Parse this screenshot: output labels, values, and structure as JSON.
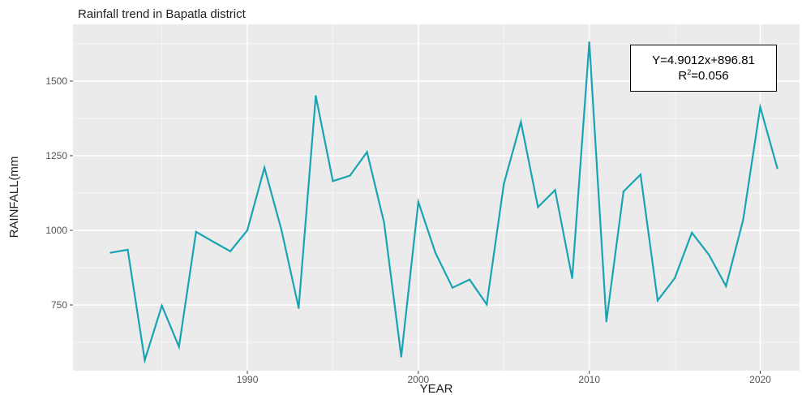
{
  "chart_data": {
    "type": "line",
    "title": "Rainfall trend in Bapatla district",
    "xlabel": "YEAR",
    "ylabel": "RAINFALL(mm",
    "xlim": [
      1979.8,
      2022.3
    ],
    "ylim": [
      530,
      1690
    ],
    "x_ticks": [
      1990,
      2000,
      2010,
      2020
    ],
    "y_ticks": [
      750,
      1000,
      1250,
      1500
    ],
    "grid": true,
    "legend": "none",
    "line_color": "#1aa3b3",
    "panel_color": "#ebebeb",
    "series": [
      {
        "x": [
          1982,
          1983,
          1984,
          1985,
          1986,
          1987,
          1988,
          1989,
          1990,
          1991,
          1992,
          1993,
          1994,
          1995,
          1996,
          1997,
          1998,
          1999,
          2000,
          2001,
          2002,
          2003,
          2004,
          2005,
          2006,
          2007,
          2008,
          2009,
          2010,
          2011,
          2012,
          2013,
          2014,
          2015,
          2016,
          2017,
          2018,
          2019,
          2020,
          2021
        ],
        "values": [
          925,
          935,
          565,
          748,
          610,
          995,
          962,
          930,
          1000,
          1210,
          1000,
          740,
          1450,
          1165,
          1183,
          1262,
          1025,
          577,
          1095,
          925,
          808,
          835,
          752,
          1155,
          1363,
          1078,
          1135,
          840,
          1630,
          695,
          1130,
          1187,
          765,
          840,
          992,
          918,
          813,
          1035,
          1413,
          1208
        ]
      }
    ],
    "annotation": {
      "equation": "Y=4.9012x+896.81",
      "r2_prefix": "R",
      "r2_sup": "2",
      "r2_value": "=0.056"
    }
  }
}
